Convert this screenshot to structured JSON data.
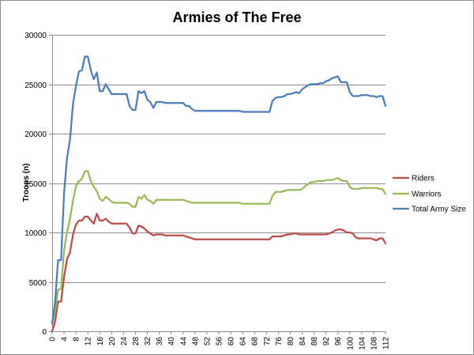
{
  "chart_data": {
    "type": "line",
    "title": "Armies of The Free",
    "xlabel": "",
    "ylabel": "Troops (n)",
    "ylim": [
      0,
      30000
    ],
    "yticks": [
      0,
      5000,
      10000,
      15000,
      20000,
      25000,
      30000
    ],
    "xlim": [
      0,
      112
    ],
    "xticks": [
      0,
      4,
      8,
      12,
      16,
      20,
      24,
      28,
      32,
      36,
      40,
      44,
      48,
      52,
      56,
      60,
      64,
      68,
      72,
      76,
      80,
      84,
      88,
      92,
      96,
      100,
      104,
      108,
      112
    ],
    "grid": true,
    "legend": "right",
    "x": [
      0,
      1,
      2,
      3,
      4,
      5,
      6,
      7,
      8,
      9,
      10,
      11,
      12,
      13,
      14,
      15,
      16,
      17,
      18,
      19,
      20,
      21,
      22,
      23,
      24,
      25,
      26,
      27,
      28,
      29,
      30,
      31,
      32,
      33,
      34,
      35,
      36,
      37,
      38,
      39,
      40,
      41,
      42,
      43,
      44,
      45,
      46,
      47,
      48,
      49,
      50,
      51,
      52,
      53,
      54,
      55,
      56,
      57,
      58,
      59,
      60,
      61,
      62,
      63,
      64,
      65,
      66,
      67,
      68,
      69,
      70,
      71,
      72,
      73,
      74,
      75,
      76,
      77,
      78,
      79,
      80,
      81,
      82,
      83,
      84,
      85,
      86,
      87,
      88,
      89,
      90,
      91,
      92,
      93,
      94,
      95,
      96,
      97,
      98,
      99,
      100,
      101,
      102,
      103,
      104,
      105,
      106,
      107,
      108,
      109,
      110,
      111,
      112
    ],
    "series": [
      {
        "name": "Riders",
        "color": "#be4b48",
        "values": [
          0,
          1000,
          3000,
          3000,
          5500,
          7300,
          8000,
          9800,
          10800,
          11200,
          11200,
          11600,
          11600,
          11200,
          10900,
          11900,
          11200,
          11200,
          11400,
          11100,
          10900,
          10900,
          10900,
          10900,
          10900,
          10900,
          10500,
          9900,
          9900,
          10700,
          10600,
          10400,
          10100,
          9900,
          9700,
          9800,
          9800,
          9800,
          9700,
          9700,
          9700,
          9700,
          9700,
          9700,
          9700,
          9600,
          9500,
          9400,
          9300,
          9300,
          9300,
          9300,
          9300,
          9300,
          9300,
          9300,
          9300,
          9300,
          9300,
          9300,
          9300,
          9300,
          9300,
          9300,
          9300,
          9300,
          9300,
          9300,
          9300,
          9300,
          9300,
          9300,
          9300,
          9300,
          9600,
          9600,
          9600,
          9600,
          9700,
          9800,
          9800,
          9900,
          9900,
          9800,
          9800,
          9800,
          9800,
          9800,
          9800,
          9800,
          9800,
          9800,
          9800,
          9900,
          10000,
          10200,
          10300,
          10300,
          10200,
          10000,
          10000,
          9900,
          9500,
          9400,
          9400,
          9400,
          9400,
          9400,
          9300,
          9200,
          9400,
          9400,
          8900
        ]
      },
      {
        "name": "Warriors",
        "color": "#98b954",
        "values": [
          700,
          2000,
          4200,
          4300,
          8200,
          10000,
          11400,
          13200,
          14700,
          15200,
          15400,
          16200,
          16200,
          15200,
          14600,
          14200,
          13400,
          13200,
          13600,
          13400,
          13100,
          13000,
          13000,
          13000,
          13000,
          13000,
          12900,
          12600,
          12600,
          13600,
          13400,
          13800,
          13300,
          13200,
          12900,
          13300,
          13300,
          13300,
          13300,
          13300,
          13300,
          13300,
          13300,
          13300,
          13300,
          13200,
          13100,
          13000,
          13000,
          13000,
          13000,
          13000,
          13000,
          13000,
          13000,
          13000,
          13000,
          13000,
          13000,
          13000,
          13000,
          13000,
          13000,
          13000,
          12900,
          12900,
          12900,
          12900,
          12900,
          12900,
          12900,
          12900,
          12900,
          12900,
          13700,
          14100,
          14100,
          14100,
          14200,
          14300,
          14300,
          14300,
          14300,
          14300,
          14400,
          14700,
          14900,
          15100,
          15100,
          15200,
          15200,
          15200,
          15300,
          15300,
          15300,
          15400,
          15500,
          15300,
          15200,
          15200,
          14600,
          14400,
          14400,
          14400,
          14500,
          14500,
          14500,
          14500,
          14500,
          14500,
          14400,
          14400,
          13900
        ]
      },
      {
        "name": "Total Army Size",
        "color": "#4a7ebb",
        "values": [
          800,
          3000,
          7200,
          7200,
          14000,
          17500,
          19400,
          23000,
          24800,
          26300,
          26400,
          27800,
          27800,
          26400,
          25500,
          26200,
          24300,
          24300,
          25000,
          24500,
          24000,
          24000,
          24000,
          24000,
          24000,
          24000,
          22800,
          22400,
          22400,
          24300,
          24100,
          24300,
          23400,
          23200,
          22600,
          23200,
          23200,
          23200,
          23100,
          23100,
          23100,
          23100,
          23100,
          23100,
          23100,
          22800,
          22800,
          22500,
          22300,
          22300,
          22300,
          22300,
          22300,
          22300,
          22300,
          22300,
          22300,
          22300,
          22300,
          22300,
          22300,
          22300,
          22300,
          22300,
          22200,
          22200,
          22200,
          22200,
          22200,
          22200,
          22200,
          22200,
          22200,
          22200,
          23300,
          23600,
          23700,
          23700,
          23800,
          24000,
          24000,
          24100,
          24200,
          24100,
          24500,
          24700,
          24900,
          25000,
          25000,
          25000,
          25100,
          25100,
          25300,
          25400,
          25600,
          25700,
          25800,
          25200,
          25200,
          25200,
          24200,
          23800,
          23800,
          23800,
          23900,
          23900,
          23900,
          23800,
          23800,
          23700,
          23800,
          23800,
          22800
        ]
      }
    ]
  }
}
